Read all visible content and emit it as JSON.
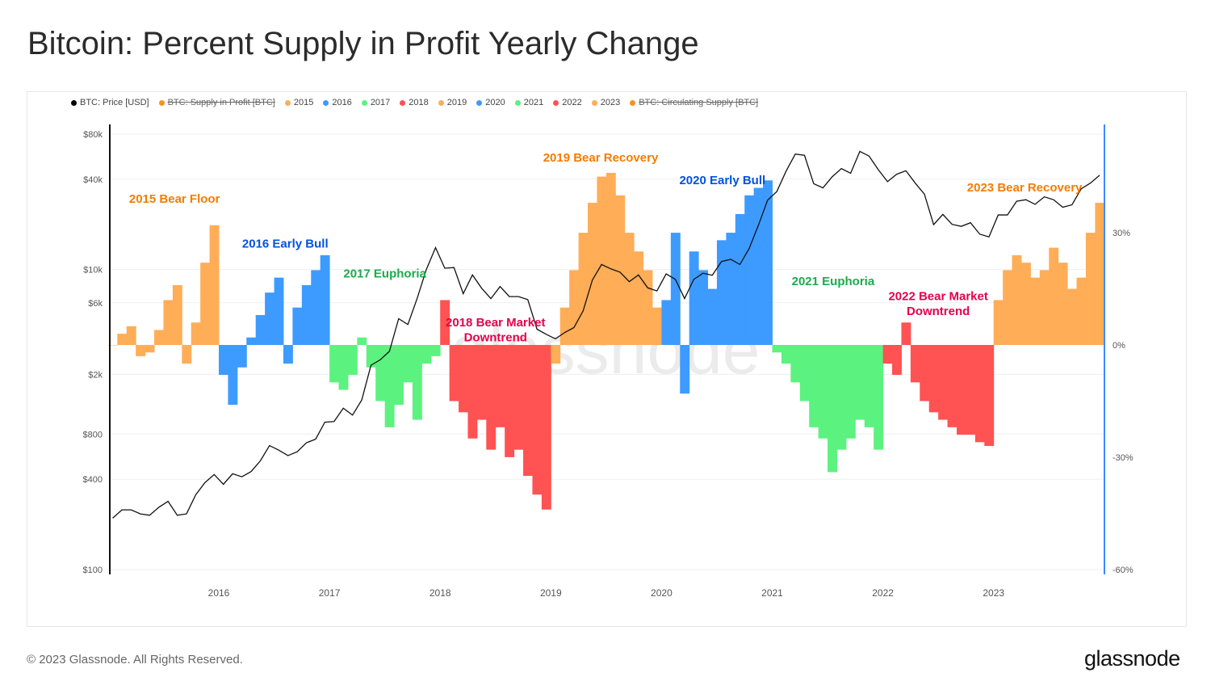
{
  "title": "Bitcoin: Percent Supply in Profit Yearly Change",
  "footer": "© 2023 Glassnode. All Rights Reserved.",
  "logo": "glassnode",
  "watermark": "glassnode",
  "legend": [
    {
      "label": "BTC: Price [USD]",
      "color": "#000000",
      "hidden": false
    },
    {
      "label": "BTC: Supply in Profit [BTC]",
      "color": "#f7931a",
      "hidden": true
    },
    {
      "label": "2015",
      "color": "#ffad57",
      "hidden": false
    },
    {
      "label": "2016",
      "color": "#3d9bff",
      "hidden": false
    },
    {
      "label": "2017",
      "color": "#5cf27f",
      "hidden": false
    },
    {
      "label": "2018",
      "color": "#ff5252",
      "hidden": false
    },
    {
      "label": "2019",
      "color": "#ffad57",
      "hidden": false
    },
    {
      "label": "2020",
      "color": "#3d9bff",
      "hidden": false
    },
    {
      "label": "2021",
      "color": "#5cf27f",
      "hidden": false
    },
    {
      "label": "2022",
      "color": "#ff5252",
      "hidden": false
    },
    {
      "label": "2023",
      "color": "#ffad57",
      "hidden": false
    },
    {
      "label": "BTC: Circulating Supply [BTC]",
      "color": "#f7931a",
      "hidden": true
    }
  ],
  "chart_data": {
    "type": "bar+line",
    "x_ticks": [
      "2016",
      "2017",
      "2018",
      "2019",
      "2020",
      "2021",
      "2022",
      "2023"
    ],
    "x_range": [
      "2015-01",
      "2023-12"
    ],
    "left_axis": {
      "scale": "log",
      "range": [
        100,
        80000
      ],
      "ticks": [
        "$80k",
        "$40k",
        "$10k",
        "$6k",
        "$2k",
        "$800",
        "$400",
        "$100"
      ],
      "tick_values": [
        80000,
        40000,
        10000,
        6000,
        2000,
        800,
        400,
        100
      ]
    },
    "right_axis": {
      "scale": "linear",
      "range": [
        -60,
        60
      ],
      "ticks": [
        "30%",
        "0%",
        "-30%",
        "-60%"
      ],
      "tick_values": [
        30,
        0,
        -30,
        -60
      ]
    },
    "price_series": {
      "name": "BTC: Price [USD]",
      "monthly": [
        220,
        250,
        250,
        235,
        230,
        260,
        285,
        230,
        235,
        315,
        380,
        430,
        370,
        435,
        415,
        450,
        530,
        670,
        625,
        575,
        610,
        700,
        740,
        960,
        970,
        1190,
        1070,
        1350,
        2300,
        2500,
        2850,
        4700,
        4300,
        6400,
        10000,
        14000,
        10200,
        10300,
        6900,
        9200,
        7500,
        6400,
        7700,
        6600,
        6600,
        6300,
        4000,
        3700,
        3450,
        3800,
        4100,
        5300,
        8500,
        10800,
        10100,
        9600,
        8300,
        9200,
        7550,
        7200,
        9350,
        8600,
        6400,
        8600,
        9450,
        9150,
        11300,
        11700,
        10800,
        13800,
        19700,
        29000,
        33100,
        45200,
        58800,
        57700,
        37300,
        35000,
        41500,
        47100,
        43800,
        61300,
        57000,
        46300,
        38500,
        43200,
        45500,
        37700,
        31800,
        19900,
        23300,
        20000,
        19400,
        20500,
        17200,
        16500,
        23100,
        23100,
        28500,
        29200,
        27200,
        30500,
        29200,
        26000,
        27000,
        34500,
        37700,
        42500
      ]
    },
    "yearly_change_series": [
      {
        "name": "2015",
        "color": "#ffad57",
        "monthly_pct": [
          0,
          3,
          5,
          -3,
          -2,
          4,
          12,
          16,
          -5,
          6,
          22,
          32
        ]
      },
      {
        "name": "2016",
        "color": "#3d9bff",
        "monthly_pct": [
          -8,
          -16,
          -6,
          2,
          8,
          14,
          18,
          -5,
          10,
          16,
          20,
          24
        ]
      },
      {
        "name": "2017",
        "color": "#5cf27f",
        "monthly_pct": [
          -10,
          -12,
          -8,
          2,
          -6,
          -15,
          -22,
          -16,
          -10,
          -20,
          -5,
          -3
        ]
      },
      {
        "name": "2018",
        "color": "#ff5252",
        "monthly_pct": [
          12,
          -15,
          -18,
          -25,
          -20,
          -28,
          -22,
          -30,
          -28,
          -35,
          -40,
          -44
        ]
      },
      {
        "name": "2019",
        "color": "#ffad57",
        "monthly_pct": [
          -5,
          10,
          20,
          30,
          38,
          45,
          46,
          40,
          30,
          25,
          20,
          10
        ]
      },
      {
        "name": "2020",
        "color": "#3d9bff",
        "monthly_pct": [
          12,
          30,
          -13,
          25,
          20,
          15,
          28,
          30,
          35,
          40,
          42,
          44
        ]
      },
      {
        "name": "2021",
        "color": "#5cf27f",
        "monthly_pct": [
          -2,
          -5,
          -10,
          -15,
          -22,
          -25,
          -34,
          -28,
          -25,
          -20,
          -22,
          -28
        ]
      },
      {
        "name": "2022",
        "color": "#ff5252",
        "monthly_pct": [
          -5,
          -8,
          6,
          -10,
          -15,
          -18,
          -20,
          -22,
          -24,
          -24,
          -26,
          -27
        ]
      },
      {
        "name": "2023",
        "color": "#ffad57",
        "monthly_pct": [
          12,
          20,
          24,
          22,
          18,
          20,
          26,
          22,
          15,
          18,
          30,
          38
        ]
      }
    ],
    "annotations": [
      {
        "text": "2015 Bear Floor",
        "color": "#f57c00",
        "year": 2015.6,
        "pct": 38
      },
      {
        "text": "2016 Early Bull",
        "color": "#0052e0",
        "year": 2016.6,
        "pct": 26
      },
      {
        "text": "2017 Euphoria",
        "color": "#1aab4b",
        "year": 2017.5,
        "pct": 18
      },
      {
        "text": "2018 Bear Market",
        "color": "#e6004c",
        "year": 2018.5,
        "pct": 5
      },
      {
        "text": "Downtrend",
        "color": "#e6004c",
        "year": 2018.5,
        "pct": 1
      },
      {
        "text": "2019 Bear Recovery",
        "color": "#f57c00",
        "year": 2019.45,
        "pct": 49
      },
      {
        "text": "2020 Early Bull",
        "color": "#0052e0",
        "year": 2020.55,
        "pct": 43
      },
      {
        "text": "2021 Euphoria",
        "color": "#1aab4b",
        "year": 2021.55,
        "pct": 16
      },
      {
        "text": "2022 Bear Market",
        "color": "#e6004c",
        "year": 2022.5,
        "pct": 12
      },
      {
        "text": "Downtrend",
        "color": "#e6004c",
        "year": 2022.5,
        "pct": 8
      },
      {
        "text": "2023 Bear Recovery",
        "color": "#f57c00",
        "year": 2023.28,
        "pct": 41
      }
    ]
  }
}
